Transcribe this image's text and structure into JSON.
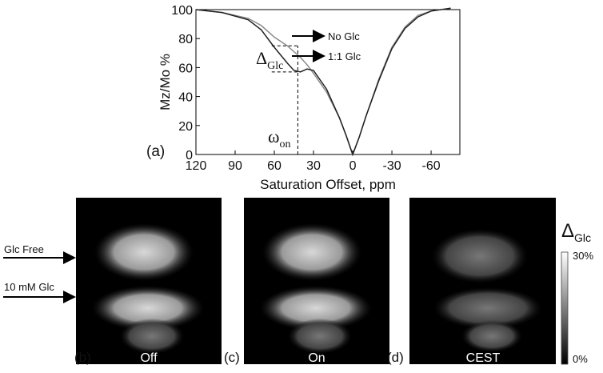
{
  "chart_data": {
    "type": "line",
    "panel_label": "(a)",
    "xlabel": "Saturation Offset, ppm",
    "ylabel": "Mz/Mo %",
    "x": [
      120,
      100,
      80,
      70,
      60,
      50,
      45,
      40,
      35,
      30,
      20,
      10,
      5,
      0,
      -5,
      -10,
      -20,
      -30,
      -40,
      -50,
      -60,
      -75
    ],
    "series": [
      {
        "name": "No Glc",
        "color": "#8a8a8a",
        "values": [
          100,
          98,
          94,
          89,
          81,
          75,
          71,
          67,
          62,
          56,
          43,
          25,
          13,
          0,
          12,
          26,
          52,
          74,
          88,
          96,
          99,
          101
        ]
      },
      {
        "name": "1:1 Glc",
        "color": "#222222",
        "values": [
          100,
          98,
          93,
          86,
          74,
          63,
          58,
          57,
          59,
          58,
          45,
          25,
          13,
          0,
          12,
          26,
          51,
          73,
          87,
          95,
          99,
          101
        ]
      }
    ],
    "xlim": [
      120,
      -82
    ],
    "ylim": [
      0,
      100
    ],
    "xticks": [
      120,
      90,
      60,
      30,
      0,
      -30,
      -60
    ],
    "yticks": [
      0,
      20,
      40,
      60,
      80,
      100
    ],
    "annotations": [
      {
        "text": "Δ",
        "sub": "Glc"
      },
      {
        "text": "ω",
        "sub": "on"
      }
    ]
  },
  "images": {
    "left_labels": [
      "Glc Free",
      "10 mM Glc"
    ],
    "panels": [
      {
        "label": "(b)",
        "caption": "Off"
      },
      {
        "label": "(c)",
        "caption": "On"
      },
      {
        "label": "(d)",
        "caption": "CEST"
      }
    ],
    "colorbar": {
      "title": "Δ",
      "sub": "Glc",
      "max": "30%",
      "min": "0%"
    }
  }
}
